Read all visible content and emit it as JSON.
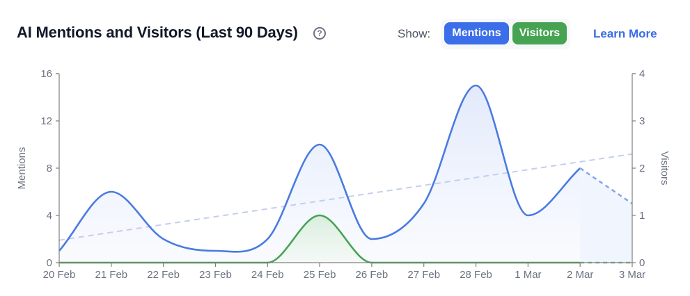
{
  "header": {
    "title": "AI Mentions and Visitors (Last 90 Days)",
    "help_icon": "question-circle-icon",
    "show_label": "Show:",
    "toggles": [
      {
        "label": "Mentions",
        "color": "#3b6ee8",
        "active": true
      },
      {
        "label": "Visitors",
        "color": "#46a352",
        "active": true
      }
    ],
    "learn_more": "Learn More"
  },
  "colors": {
    "mentions": "#4a7be0",
    "visitors": "#46a352",
    "trend": "#c5cdf0",
    "axis": "#7f7f7f"
  },
  "chart_data": {
    "type": "line",
    "title": "AI Mentions and Visitors (Last 90 Days)",
    "categories": [
      "20 Feb",
      "21 Feb",
      "22 Feb",
      "23 Feb",
      "24 Feb",
      "25 Feb",
      "26 Feb",
      "27 Feb",
      "28 Feb",
      "1 Mar",
      "2 Mar",
      "3 Mar"
    ],
    "series": [
      {
        "name": "Mentions",
        "axis": "left",
        "values": [
          1,
          6,
          2,
          1,
          2,
          10,
          2,
          5,
          15,
          4,
          8,
          5
        ],
        "projected_from_index": 10
      },
      {
        "name": "Visitors",
        "axis": "right",
        "values": [
          0,
          0,
          0,
          0,
          0,
          1,
          0,
          0,
          0,
          0,
          0,
          0
        ],
        "projected_from_index": 10
      },
      {
        "name": "Mentions trend",
        "axis": "left",
        "style": "dashed",
        "values_endpoints": [
          1.9,
          9.2
        ]
      }
    ],
    "xlabel": "",
    "ylabel": "Mentions",
    "y2label": "Visitors",
    "ylim": [
      0,
      16
    ],
    "y2lim": [
      0,
      4
    ],
    "yticks": [
      0,
      4,
      8,
      12,
      16
    ],
    "y2ticks": [
      0,
      1,
      2,
      3,
      4
    ],
    "grid": false,
    "legend": "toggle buttons top-right"
  }
}
